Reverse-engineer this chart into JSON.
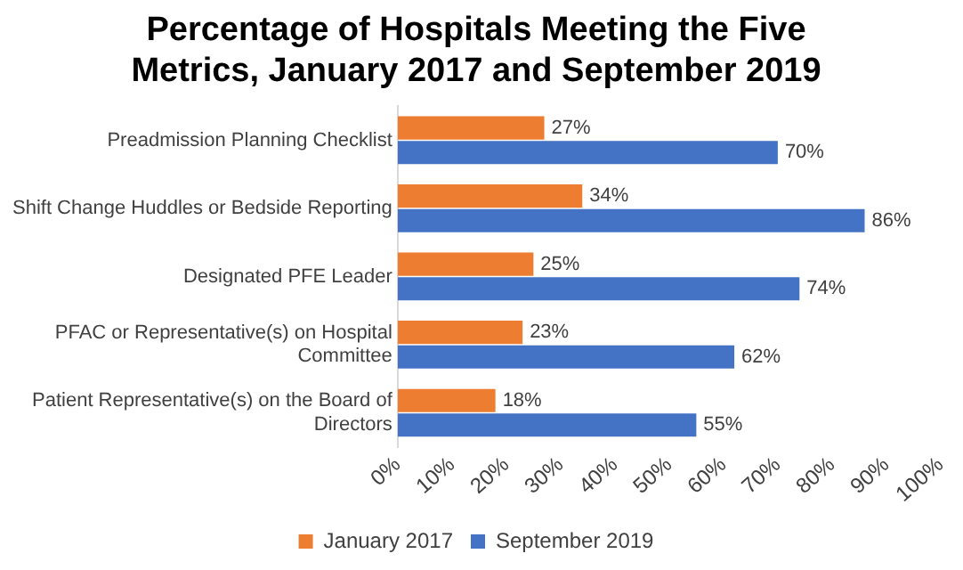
{
  "chart_data": {
    "type": "bar",
    "orientation": "horizontal",
    "title": "Percentage of Hospitals Meeting the Five Metrics, January 2017 and September 2019",
    "categories": [
      "Preadmission Planning Checklist",
      "Shift Change Huddles or Bedside Reporting",
      "Designated PFE Leader",
      "PFAC or Representative(s) on Hospital Committee",
      "Patient Representative(s) on the Board of Directors"
    ],
    "series": [
      {
        "name": "January 2017",
        "color": "#ed7d31",
        "values": [
          27,
          34,
          25,
          23,
          18
        ],
        "value_labels": [
          "27%",
          "34%",
          "25%",
          "23%",
          "18%"
        ]
      },
      {
        "name": "September 2019",
        "color": "#4472c4",
        "values": [
          70,
          86,
          74,
          62,
          55
        ],
        "value_labels": [
          "70%",
          "86%",
          "74%",
          "62%",
          "55%"
        ]
      }
    ],
    "xlim": [
      0,
      100
    ],
    "xticks": [
      {
        "value": 0,
        "label": "0%"
      },
      {
        "value": 10,
        "label": "10%"
      },
      {
        "value": 20,
        "label": "20%"
      },
      {
        "value": 30,
        "label": "30%"
      },
      {
        "value": 40,
        "label": "40%"
      },
      {
        "value": 50,
        "label": "50%"
      },
      {
        "value": 60,
        "label": "60%"
      },
      {
        "value": 70,
        "label": "70%"
      },
      {
        "value": 80,
        "label": "80%"
      },
      {
        "value": 90,
        "label": "90%"
      },
      {
        "value": 100,
        "label": "100%"
      }
    ],
    "grid": false,
    "legend": "bottom"
  }
}
